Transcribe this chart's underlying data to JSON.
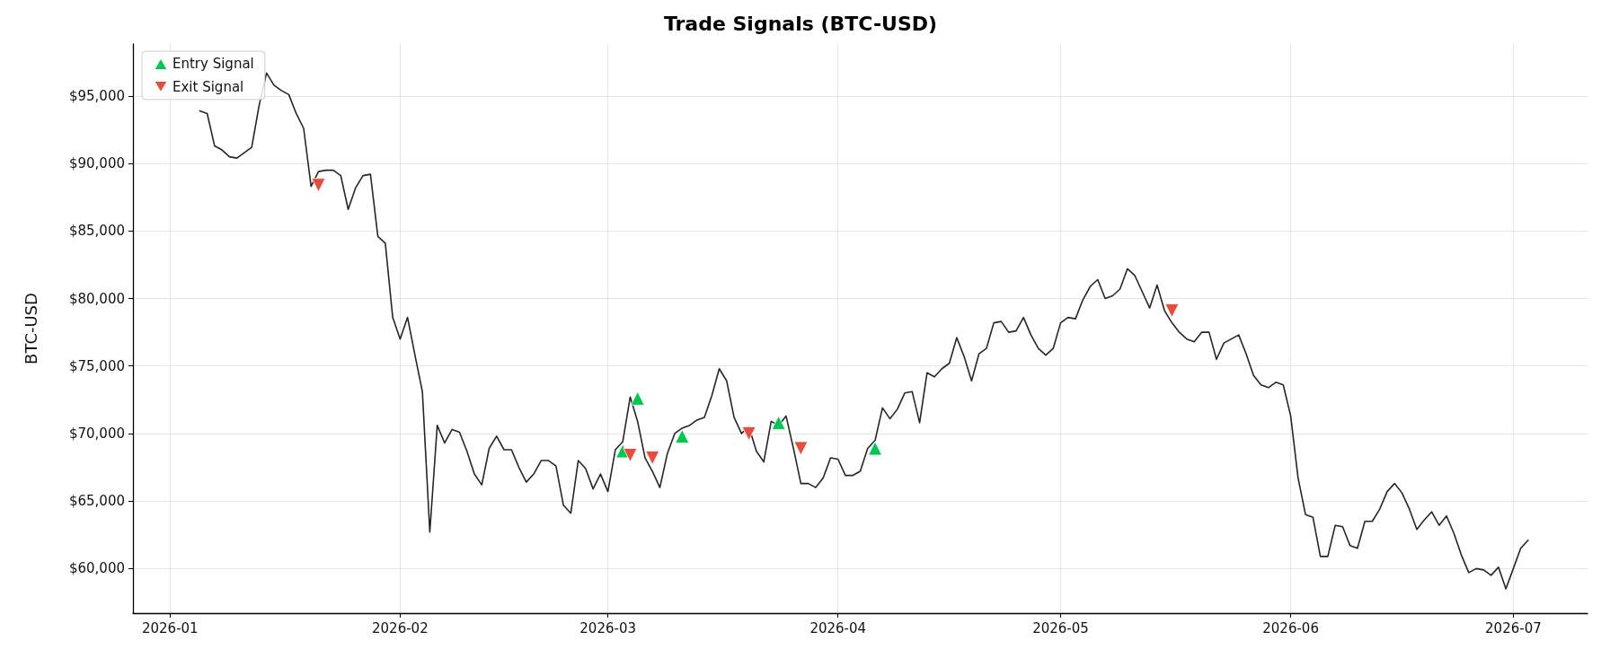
{
  "chart_data": {
    "type": "line",
    "title": "Trade Signals (BTC-USD)",
    "ylabel": "BTC-USD",
    "xlim": [
      "2025-12-27",
      "2026-07-11"
    ],
    "xticks": [
      {
        "value": "2026-01-01",
        "label": "2026-01"
      },
      {
        "value": "2026-02-01",
        "label": "2026-02"
      },
      {
        "value": "2026-03-01",
        "label": "2026-03"
      },
      {
        "value": "2026-04-01",
        "label": "2026-04"
      },
      {
        "value": "2026-05-01",
        "label": "2026-05"
      },
      {
        "value": "2026-06-01",
        "label": "2026-06"
      },
      {
        "value": "2026-07-01",
        "label": "2026-07"
      }
    ],
    "ylim": [
      56700,
      98850
    ],
    "yticks": [
      {
        "value": 60000,
        "label": "$60,000"
      },
      {
        "value": 65000,
        "label": "$65,000"
      },
      {
        "value": 70000,
        "label": "$70,000"
      },
      {
        "value": 75000,
        "label": "$75,000"
      },
      {
        "value": 80000,
        "label": "$80,000"
      },
      {
        "value": 85000,
        "label": "$85,000"
      },
      {
        "value": 90000,
        "label": "$90,000"
      },
      {
        "value": 95000,
        "label": "$95,000"
      }
    ],
    "grid": true,
    "legend": "top left",
    "line_style": "solid",
    "series": [
      {
        "color": "#262626",
        "x": [
          "2026-01-05",
          "2026-01-06",
          "2026-01-07",
          "2026-01-08",
          "2026-01-09",
          "2026-01-10",
          "2026-01-11",
          "2026-01-12",
          "2026-01-13",
          "2026-01-14",
          "2026-01-15",
          "2026-01-16",
          "2026-01-17",
          "2026-01-18",
          "2026-01-19",
          "2026-01-20",
          "2026-01-21",
          "2026-01-22",
          "2026-01-23",
          "2026-01-24",
          "2026-01-25",
          "2026-01-26",
          "2026-01-27",
          "2026-01-28",
          "2026-01-29",
          "2026-01-30",
          "2026-01-31",
          "2026-02-01",
          "2026-02-02",
          "2026-02-03",
          "2026-02-04",
          "2026-02-05",
          "2026-02-06",
          "2026-02-07",
          "2026-02-08",
          "2026-02-09",
          "2026-02-10",
          "2026-02-11",
          "2026-02-12",
          "2026-02-13",
          "2026-02-14",
          "2026-02-15",
          "2026-02-16",
          "2026-02-17",
          "2026-02-18",
          "2026-02-19",
          "2026-02-20",
          "2026-02-21",
          "2026-02-22",
          "2026-02-23",
          "2026-02-24",
          "2026-02-25",
          "2026-02-26",
          "2026-02-27",
          "2026-02-28",
          "2026-03-01",
          "2026-03-02",
          "2026-03-03",
          "2026-03-04",
          "2026-03-05",
          "2026-03-06",
          "2026-03-07",
          "2026-03-08",
          "2026-03-09",
          "2026-03-10",
          "2026-03-11",
          "2026-03-12",
          "2026-03-13",
          "2026-03-14",
          "2026-03-15",
          "2026-03-16",
          "2026-03-17",
          "2026-03-18",
          "2026-03-19",
          "2026-03-20",
          "2026-03-21",
          "2026-03-22",
          "2026-03-23",
          "2026-03-24",
          "2026-03-25",
          "2026-03-26",
          "2026-03-27",
          "2026-03-28",
          "2026-03-29",
          "2026-03-30",
          "2026-03-31",
          "2026-04-01",
          "2026-04-02",
          "2026-04-03",
          "2026-04-04",
          "2026-04-05",
          "2026-04-06",
          "2026-04-07",
          "2026-04-08",
          "2026-04-09",
          "2026-04-10",
          "2026-04-11",
          "2026-04-12",
          "2026-04-13",
          "2026-04-14",
          "2026-04-15",
          "2026-04-16",
          "2026-04-17",
          "2026-04-18",
          "2026-04-19",
          "2026-04-20",
          "2026-04-21",
          "2026-04-22",
          "2026-04-23",
          "2026-04-24",
          "2026-04-25",
          "2026-04-26",
          "2026-04-27",
          "2026-04-28",
          "2026-04-29",
          "2026-04-30",
          "2026-05-01",
          "2026-05-02",
          "2026-05-03",
          "2026-05-04",
          "2026-05-05",
          "2026-05-06",
          "2026-05-07",
          "2026-05-08",
          "2026-05-09",
          "2026-05-10",
          "2026-05-11",
          "2026-05-12",
          "2026-05-13",
          "2026-05-14",
          "2026-05-15",
          "2026-05-16",
          "2026-05-17",
          "2026-05-18",
          "2026-05-19",
          "2026-05-20",
          "2026-05-21",
          "2026-05-22",
          "2026-05-23",
          "2026-05-24",
          "2026-05-25",
          "2026-05-26",
          "2026-05-27",
          "2026-05-28",
          "2026-05-29",
          "2026-05-30",
          "2026-05-31",
          "2026-06-01",
          "2026-06-02",
          "2026-06-03",
          "2026-06-04",
          "2026-06-05",
          "2026-06-06",
          "2026-06-07",
          "2026-06-08",
          "2026-06-09",
          "2026-06-10",
          "2026-06-11",
          "2026-06-12",
          "2026-06-13",
          "2026-06-14",
          "2026-06-15",
          "2026-06-16",
          "2026-06-17",
          "2026-06-18",
          "2026-06-19",
          "2026-06-20",
          "2026-06-21",
          "2026-06-22",
          "2026-06-23",
          "2026-06-24",
          "2026-06-25",
          "2026-06-26",
          "2026-06-27",
          "2026-06-28",
          "2026-06-29",
          "2026-06-30",
          "2026-07-01",
          "2026-07-02",
          "2026-07-03"
        ],
        "values": [
          93900,
          93700,
          91300,
          91000,
          90500,
          90400,
          90800,
          91200,
          94300,
          96700,
          95800,
          95400,
          95100,
          93700,
          92600,
          88300,
          89400,
          89500,
          89500,
          89100,
          86600,
          88200,
          89100,
          89200,
          84600,
          84100,
          78600,
          77000,
          78600,
          75800,
          73100,
          62700,
          70600,
          69300,
          70300,
          70100,
          68700,
          67000,
          66200,
          68900,
          69800,
          68800,
          68800,
          67500,
          66400,
          67000,
          68000,
          68000,
          67600,
          64700,
          64100,
          68000,
          67400,
          65900,
          67000,
          65700,
          68800,
          69400,
          72700,
          70900,
          68200,
          67200,
          66000,
          68500,
          70000,
          70400,
          70600,
          71000,
          71200,
          72800,
          74800,
          73900,
          71200,
          70000,
          70500,
          68700,
          67900,
          70900,
          70600,
          71300,
          68900,
          66300,
          66300,
          66000,
          66700,
          68200,
          68100,
          66900,
          66900,
          67200,
          68900,
          69500,
          71900,
          71100,
          71800,
          73000,
          73100,
          70800,
          74500,
          74200,
          74800,
          75200,
          77100,
          75700,
          73900,
          75900,
          76300,
          78200,
          78300,
          77500,
          77600,
          78600,
          77300,
          76300,
          75800,
          76300,
          78200,
          78600,
          78500,
          79900,
          80900,
          81400,
          80000,
          80200,
          80700,
          82200,
          81700,
          80500,
          79300,
          81000,
          79100,
          78200,
          77500,
          77000,
          76800,
          77500,
          77500,
          75500,
          76700,
          77000,
          77300,
          75900,
          74300,
          73600,
          73400,
          73800,
          73600,
          71300,
          66700,
          64000,
          63800,
          60900,
          60900,
          63200,
          63100,
          61700,
          61500,
          63500,
          63500,
          64400,
          65700,
          66300,
          65600,
          64400,
          62900,
          63600,
          64200,
          63200,
          63900,
          62600,
          61000,
          59700,
          60000,
          59900,
          59500,
          60100,
          58500,
          60000,
          61500,
          62100
        ]
      },
      {
        "type": "scatter",
        "name": "Entry Signal",
        "color": "#00c853",
        "marker": "triangle",
        "x": [
          "2026-03-03",
          "2026-03-05",
          "2026-03-11",
          "2026-03-24",
          "2026-04-06"
        ],
        "values": [
          68700,
          72600,
          69800,
          70800,
          68900
        ]
      },
      {
        "type": "scatter",
        "name": "Exit Signal",
        "color": "#e74c3c",
        "marker": "triangle-down",
        "x": [
          "2026-01-21",
          "2026-03-04",
          "2026-03-07",
          "2026-03-20",
          "2026-03-27",
          "2026-05-16"
        ],
        "values": [
          88400,
          68400,
          68200,
          70000,
          68900,
          79100
        ]
      }
    ]
  }
}
